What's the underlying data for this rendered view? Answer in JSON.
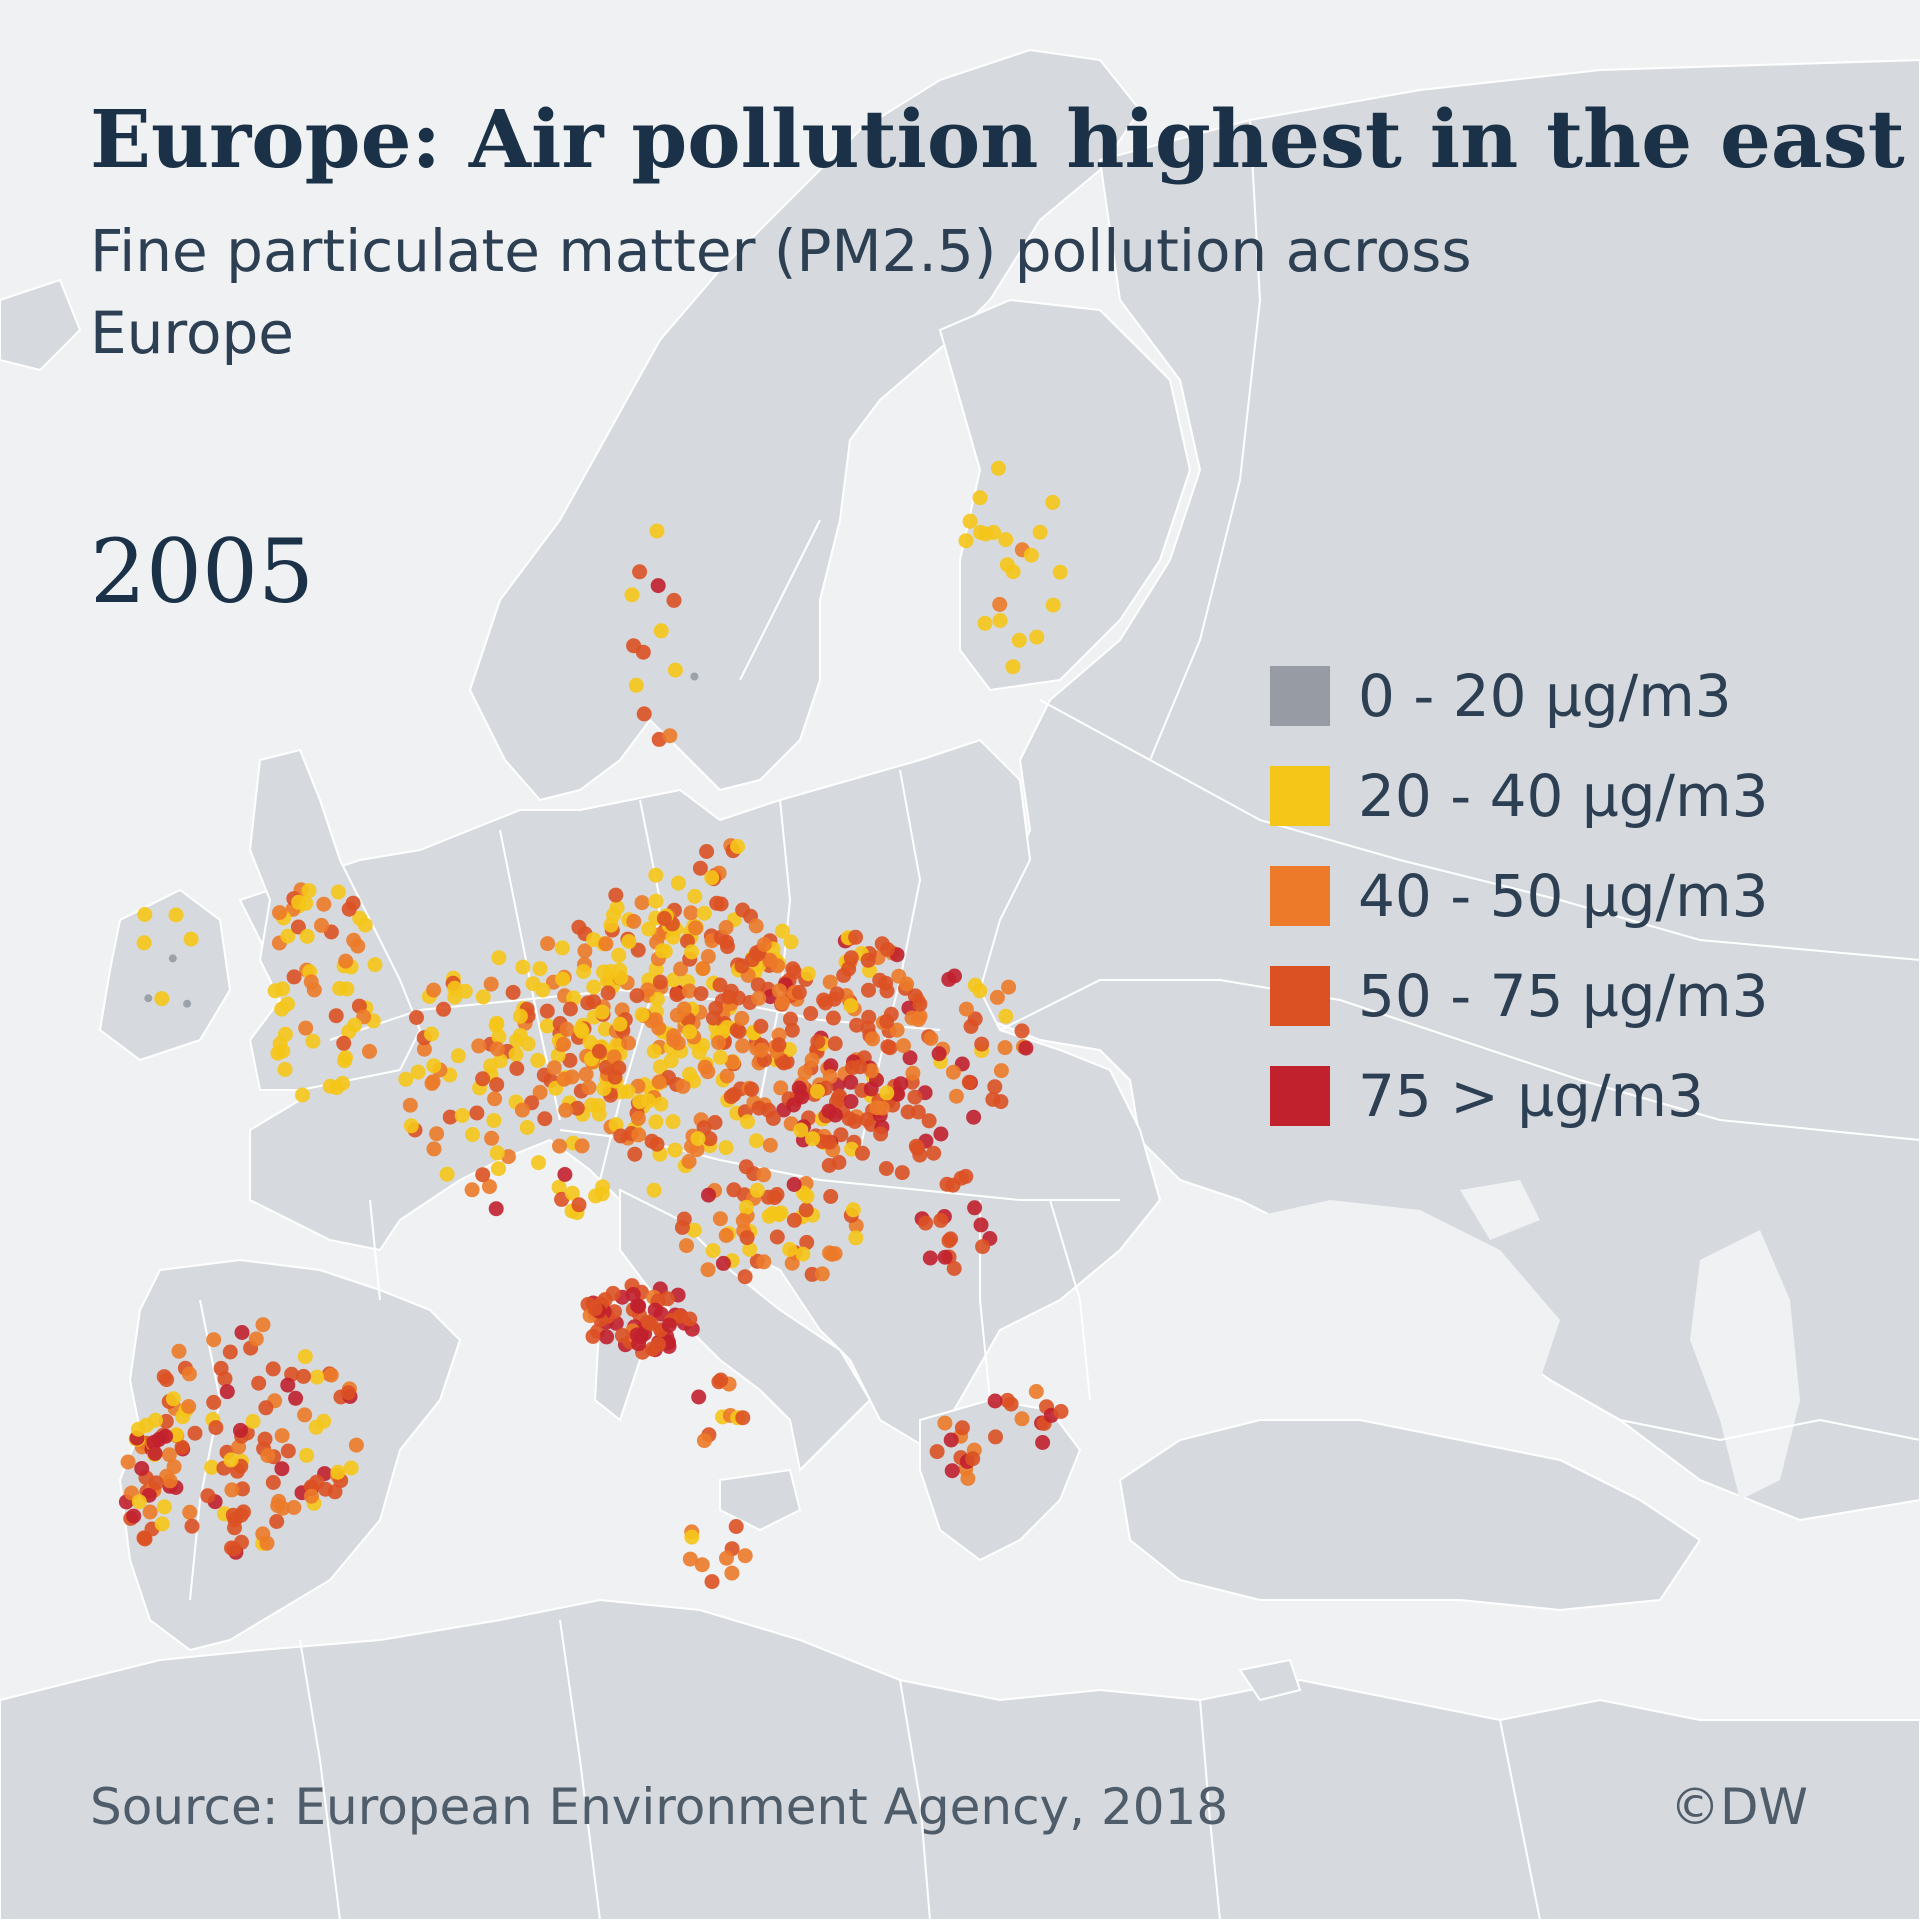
{
  "header": {
    "title": "Europe: Air pollution highest in the east",
    "subtitle": "Fine particulate matter (PM2.5) pollution across Europe"
  },
  "year_label": "2005",
  "legend": {
    "items": [
      {
        "label": "0 - 20 µg/m3",
        "color": "#969ba4"
      },
      {
        "label": "20 - 40 µg/m3",
        "color": "#f5c518"
      },
      {
        "label": "40 - 50 µg/m3",
        "color": "#ec7a29"
      },
      {
        "label": "50 - 75 µg/m3",
        "color": "#db5124"
      },
      {
        "label": "75 > µg/m3",
        "color": "#c1202d"
      }
    ]
  },
  "footer": {
    "source": "Source: European Environment Agency, 2018",
    "credit": "©DW"
  }
}
